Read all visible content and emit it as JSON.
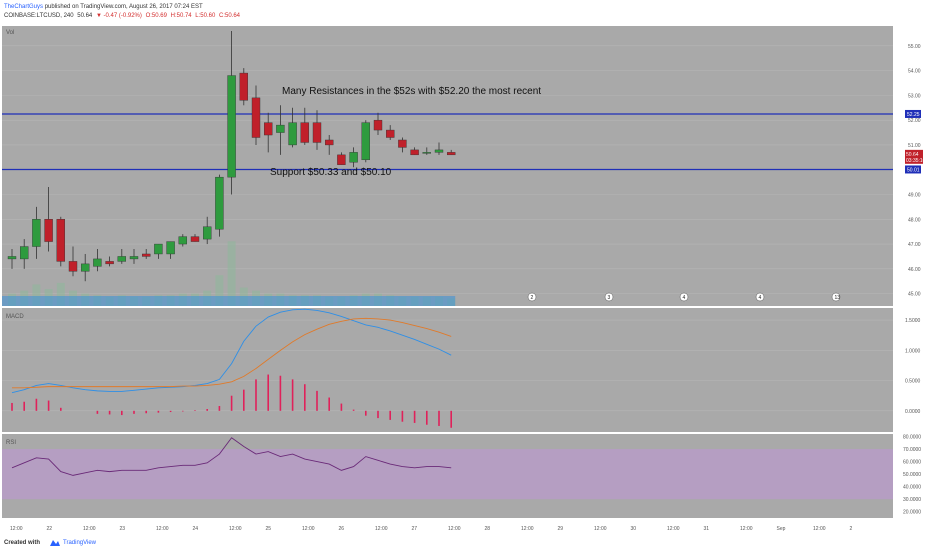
{
  "header": {
    "author": "TheChartGuys",
    "published_text": "published on TradingView.com, August 26, 2017 07:24 EST",
    "symbol": "COINBASE:LTCUSD, 240",
    "last": "50.64",
    "change": "▼ -0.47 (-0.92%)",
    "o": "O:50.69",
    "h": "H:50.74",
    "l": "L:50.60",
    "c": "C:50.64"
  },
  "footer": {
    "created_with": "Created with",
    "brand": "TradingView"
  },
  "colors": {
    "background": "#a9a9a9",
    "up": "#2e9b3e",
    "down": "#c0202a",
    "line": "#1f2fb8",
    "macd": "#2f8fe6",
    "signal": "#e07a2a",
    "hist": "#e0215a",
    "rsi": "#6a2a78",
    "rsi_band": "#b89bc8",
    "volume": "#3a8fd8"
  },
  "chart_data": [
    {
      "type": "candlestick",
      "pane": "price",
      "pane_label": "Vol",
      "ylim": [
        44.5,
        55.8
      ],
      "yticks": [
        45.0,
        46.0,
        47.0,
        48.0,
        49.0,
        50.0,
        51.0,
        52.0,
        53.0,
        54.0,
        55.0
      ],
      "candles": [
        {
          "o": 46.4,
          "h": 46.8,
          "l": 46.0,
          "c": 46.5
        },
        {
          "o": 46.4,
          "h": 47.2,
          "l": 46.0,
          "c": 46.9
        },
        {
          "o": 46.9,
          "h": 48.5,
          "l": 46.4,
          "c": 48.0
        },
        {
          "o": 48.0,
          "h": 49.3,
          "l": 46.7,
          "c": 47.1
        },
        {
          "o": 48.0,
          "h": 48.1,
          "l": 46.1,
          "c": 46.3
        },
        {
          "o": 46.3,
          "h": 46.9,
          "l": 45.7,
          "c": 45.9
        },
        {
          "o": 45.9,
          "h": 46.6,
          "l": 45.5,
          "c": 46.2
        },
        {
          "o": 46.1,
          "h": 46.8,
          "l": 45.9,
          "c": 46.4
        },
        {
          "o": 46.3,
          "h": 46.5,
          "l": 46.1,
          "c": 46.2
        },
        {
          "o": 46.3,
          "h": 46.8,
          "l": 46.2,
          "c": 46.5
        },
        {
          "o": 46.4,
          "h": 46.8,
          "l": 46.2,
          "c": 46.5
        },
        {
          "o": 46.6,
          "h": 46.8,
          "l": 46.4,
          "c": 46.5
        },
        {
          "o": 46.6,
          "h": 47.0,
          "l": 46.4,
          "c": 47.0
        },
        {
          "o": 46.6,
          "h": 47.1,
          "l": 46.4,
          "c": 47.1
        },
        {
          "o": 47.0,
          "h": 47.4,
          "l": 46.9,
          "c": 47.3
        },
        {
          "o": 47.3,
          "h": 47.4,
          "l": 47.1,
          "c": 47.1
        },
        {
          "o": 47.2,
          "h": 48.1,
          "l": 47.0,
          "c": 47.7
        },
        {
          "o": 47.6,
          "h": 49.8,
          "l": 47.3,
          "c": 49.7
        },
        {
          "o": 49.7,
          "h": 55.6,
          "l": 49.0,
          "c": 53.8
        },
        {
          "o": 53.9,
          "h": 54.1,
          "l": 52.6,
          "c": 52.8
        },
        {
          "o": 52.9,
          "h": 53.4,
          "l": 51.0,
          "c": 51.3
        },
        {
          "o": 51.9,
          "h": 52.3,
          "l": 50.7,
          "c": 51.4
        },
        {
          "o": 51.5,
          "h": 52.6,
          "l": 50.6,
          "c": 51.8
        },
        {
          "o": 51.0,
          "h": 52.5,
          "l": 50.9,
          "c": 51.9
        },
        {
          "o": 51.9,
          "h": 52.5,
          "l": 51.0,
          "c": 51.1
        },
        {
          "o": 51.9,
          "h": 52.4,
          "l": 50.8,
          "c": 51.1
        },
        {
          "o": 51.2,
          "h": 51.4,
          "l": 50.6,
          "c": 51.0
        },
        {
          "o": 50.6,
          "h": 50.7,
          "l": 50.2,
          "c": 50.2
        },
        {
          "o": 50.3,
          "h": 50.9,
          "l": 50.1,
          "c": 50.7
        },
        {
          "o": 50.4,
          "h": 52.0,
          "l": 50.3,
          "c": 51.9
        },
        {
          "o": 52.0,
          "h": 52.3,
          "l": 51.4,
          "c": 51.6
        },
        {
          "o": 51.6,
          "h": 51.8,
          "l": 51.2,
          "c": 51.3
        },
        {
          "o": 51.2,
          "h": 51.3,
          "l": 50.7,
          "c": 50.9
        },
        {
          "o": 50.8,
          "h": 50.9,
          "l": 50.6,
          "c": 50.6
        },
        {
          "o": 50.7,
          "h": 50.9,
          "l": 50.6,
          "c": 50.7
        },
        {
          "o": 50.7,
          "h": 51.1,
          "l": 50.6,
          "c": 50.8
        },
        {
          "o": 50.7,
          "h": 50.8,
          "l": 50.6,
          "c": 50.6
        }
      ],
      "volume": [
        0.08,
        0.1,
        0.14,
        0.11,
        0.15,
        0.1,
        0.08,
        0.07,
        0.06,
        0.07,
        0.06,
        0.06,
        0.07,
        0.07,
        0.08,
        0.08,
        0.1,
        0.2,
        0.42,
        0.12,
        0.1,
        0.08,
        0.08,
        0.07,
        0.07,
        0.07,
        0.06,
        0.06,
        0.07,
        0.08,
        0.08,
        0.07,
        0.06,
        0.06,
        0.06,
        0.06,
        0.05
      ],
      "hlines": [
        {
          "value": 52.25,
          "label": "52.25"
        },
        {
          "value": 50.01,
          "label": "50.01"
        }
      ],
      "price_tags": [
        {
          "value": 50.64,
          "label": "50.64"
        },
        {
          "value": 50.4,
          "label": "03:35:10"
        }
      ],
      "annotations": [
        {
          "text": "Many Resistances in the $52s with $52.20 the most recent"
        },
        {
          "text": "Support $50.33 and $50.10"
        }
      ],
      "event_markers": [
        "2",
        "3",
        "4",
        "4",
        "13"
      ]
    },
    {
      "type": "line",
      "pane": "macd",
      "pane_label": "MACD",
      "ylim": [
        -0.35,
        1.7
      ],
      "yticks": [
        0.0,
        0.5,
        1.0,
        1.5
      ],
      "ytick_labels": [
        "0.0000",
        "0.5000",
        "1.0000",
        "1.5000"
      ],
      "series": [
        {
          "name": "macd",
          "values": [
            0.3,
            0.35,
            0.42,
            0.45,
            0.42,
            0.38,
            0.35,
            0.33,
            0.32,
            0.32,
            0.34,
            0.36,
            0.38,
            0.39,
            0.4,
            0.42,
            0.45,
            0.52,
            0.78,
            1.15,
            1.4,
            1.55,
            1.63,
            1.67,
            1.68,
            1.66,
            1.62,
            1.56,
            1.49,
            1.42,
            1.38,
            1.32,
            1.25,
            1.18,
            1.1,
            1.02,
            0.92
          ]
        },
        {
          "name": "signal",
          "values": [
            0.38,
            0.38,
            0.39,
            0.4,
            0.4,
            0.4,
            0.4,
            0.4,
            0.4,
            0.4,
            0.4,
            0.4,
            0.4,
            0.4,
            0.41,
            0.41,
            0.42,
            0.44,
            0.48,
            0.57,
            0.7,
            0.85,
            1.0,
            1.14,
            1.26,
            1.35,
            1.43,
            1.48,
            1.52,
            1.53,
            1.52,
            1.5,
            1.46,
            1.41,
            1.36,
            1.3,
            1.23
          ]
        }
      ],
      "histogram": [
        0.13,
        0.15,
        0.2,
        0.17,
        0.05,
        0.0,
        0.0,
        -0.05,
        -0.06,
        -0.07,
        -0.05,
        -0.04,
        -0.03,
        -0.02,
        -0.01,
        0.01,
        0.03,
        0.08,
        0.25,
        0.35,
        0.52,
        0.6,
        0.58,
        0.52,
        0.44,
        0.33,
        0.22,
        0.12,
        0.02,
        -0.08,
        -0.12,
        -0.15,
        -0.18,
        -0.2,
        -0.23,
        -0.25,
        -0.28
      ]
    },
    {
      "type": "line",
      "pane": "rsi",
      "pane_label": "RSI",
      "ylim": [
        15,
        82
      ],
      "yticks": [
        20,
        30,
        40,
        50,
        60,
        70,
        80
      ],
      "ytick_labels": [
        "20.0000",
        "30.0000",
        "40.0000",
        "50.0000",
        "60.0000",
        "70.0000",
        "80.0000"
      ],
      "band": [
        30,
        70
      ],
      "series": [
        {
          "name": "rsi",
          "values": [
            55,
            59,
            63,
            62,
            52,
            49,
            51,
            53,
            52,
            53,
            53,
            53,
            55,
            56,
            57,
            57,
            59,
            66,
            79,
            72,
            66,
            68,
            64,
            66,
            62,
            60,
            58,
            53,
            56,
            64,
            61,
            58,
            56,
            55,
            56,
            56,
            55
          ]
        }
      ]
    }
  ],
  "time_axis": {
    "labels": [
      "12:00",
      "22",
      "12:00",
      "23",
      "12:00",
      "24",
      "12:00",
      "25",
      "12:00",
      "26",
      "12:00",
      "27",
      "12:00",
      "28",
      "12:00",
      "29",
      "12:00",
      "30",
      "12:00",
      "31",
      "12:00",
      "Sep",
      "12:00",
      "2"
    ]
  }
}
